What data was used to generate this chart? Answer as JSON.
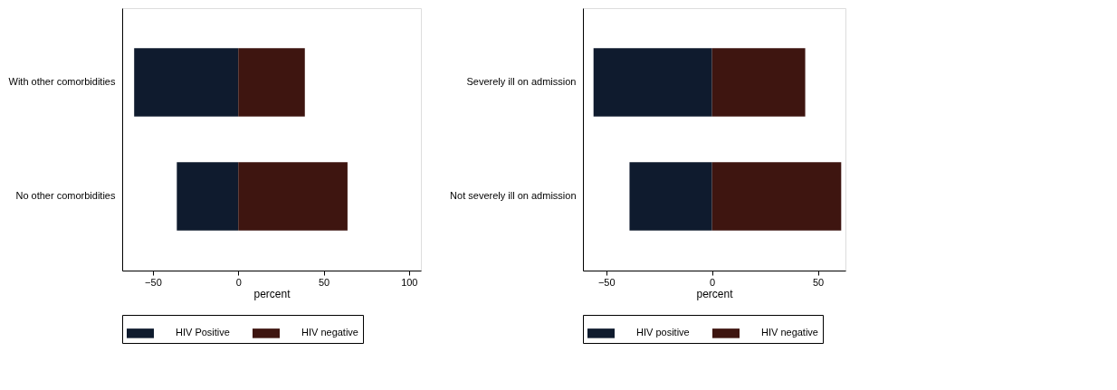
{
  "chart_data": [
    {
      "type": "bar",
      "orientation": "horizontal",
      "stacked": true,
      "categories": [
        "With other comorbidities",
        "No other comorbidities"
      ],
      "xlabel": "percent",
      "xlim": [
        -68,
        107
      ],
      "xticks": [
        -50,
        0,
        50,
        100
      ],
      "grid": false,
      "legend": "bottom",
      "series": [
        {
          "name": "HIV Positive",
          "color": "#0f1b2e",
          "values": [
            -61,
            -36
          ]
        },
        {
          "name": "HIV negative",
          "color": "#3e1510",
          "values": [
            39,
            64
          ]
        }
      ]
    },
    {
      "type": "bar",
      "orientation": "horizontal",
      "stacked": true,
      "categories": [
        "Severely ill on admission",
        "Not severely ill on admission"
      ],
      "xlabel": "percent",
      "xlim": [
        -61,
        63
      ],
      "xticks": [
        -50,
        0,
        50
      ],
      "grid": false,
      "legend": "bottom",
      "series": [
        {
          "name": "HIV positive",
          "color": "#0f1b2e",
          "values": [
            -56,
            -39
          ]
        },
        {
          "name": "HIV negative",
          "color": "#3e1510",
          "values": [
            44,
            61
          ]
        }
      ]
    }
  ]
}
